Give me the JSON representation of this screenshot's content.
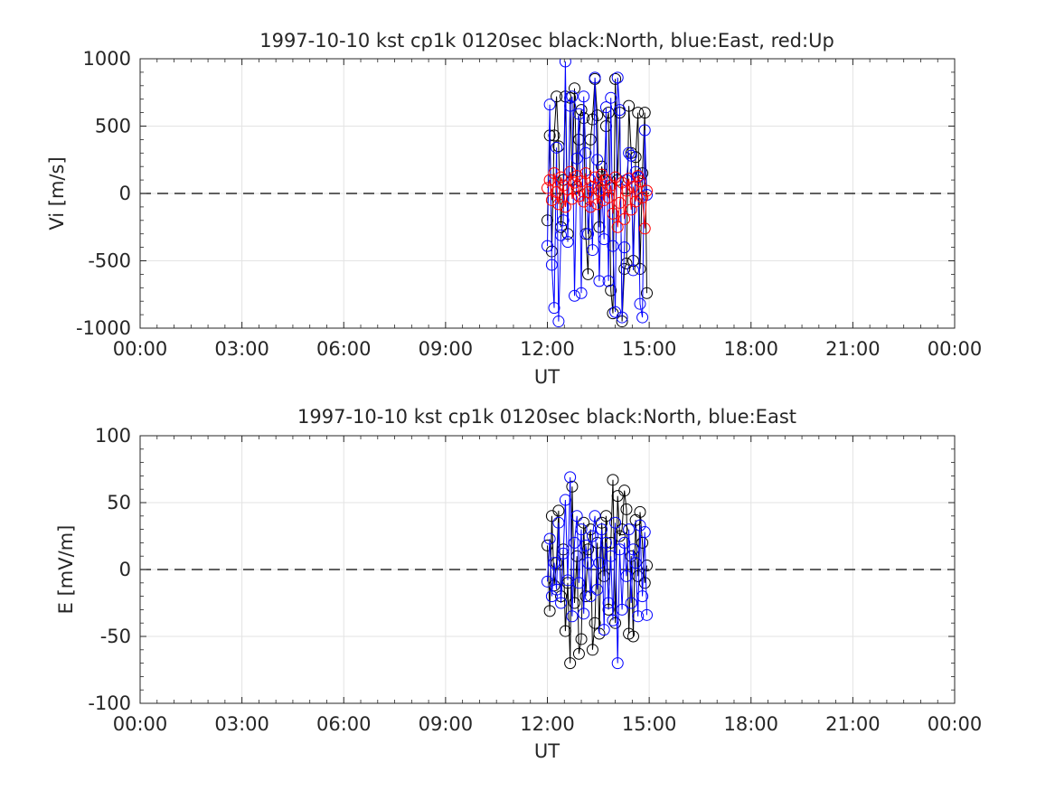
{
  "figure": {
    "background": "#ffffff"
  },
  "chart_data": [
    {
      "type": "scatter",
      "title": "1997-10-10 kst cp1k 0120sec black:North, blue:East, red:Up",
      "xlabel": "UT",
      "ylabel": "Vi [m/s]",
      "xlim": [
        0,
        24
      ],
      "ylim": [
        -1000,
        1000
      ],
      "xticks": [
        0,
        3,
        6,
        9,
        12,
        15,
        18,
        21,
        24
      ],
      "xticklabels": [
        "00:00",
        "03:00",
        "06:00",
        "09:00",
        "12:00",
        "15:00",
        "18:00",
        "21:00",
        "00:00"
      ],
      "yticks": [
        -1000,
        -500,
        0,
        500,
        1000
      ],
      "yticklabels": [
        "-1000",
        "-500",
        "0",
        "500",
        "1000"
      ],
      "grid": true,
      "zero_line": true,
      "x_unit": "hours UT",
      "series": [
        {
          "color": "#000000",
          "x": [
            12.0,
            12.07,
            12.13,
            12.2,
            12.27,
            12.33,
            12.4,
            12.47,
            12.53,
            12.6,
            12.67,
            12.73,
            12.8,
            12.87,
            12.93,
            13.0,
            13.07,
            13.13,
            13.2,
            13.27,
            13.33,
            13.4,
            13.47,
            13.53,
            13.6,
            13.67,
            13.73,
            13.8,
            13.87,
            13.93,
            14.0,
            14.07,
            14.13,
            14.2,
            14.27,
            14.33,
            14.4,
            14.47,
            14.53,
            14.6,
            14.67,
            14.73,
            14.8,
            14.87,
            14.93
          ],
          "y": [
            -200,
            430,
            -430,
            430,
            720,
            350,
            -250,
            100,
            720,
            -300,
            710,
            100,
            780,
            50,
            400,
            620,
            560,
            -300,
            -600,
            400,
            550,
            850,
            580,
            -250,
            200,
            100,
            500,
            600,
            -720,
            -890,
            850,
            100,
            600,
            -950,
            -560,
            -520,
            650,
            300,
            -500,
            270,
            600,
            -560,
            150,
            600,
            -740
          ]
        },
        {
          "color": "#0000ff",
          "x": [
            12.0,
            12.07,
            12.13,
            12.2,
            12.27,
            12.33,
            12.4,
            12.47,
            12.53,
            12.6,
            12.67,
            12.73,
            12.8,
            12.87,
            12.93,
            13.0,
            13.07,
            13.13,
            13.2,
            13.27,
            13.33,
            13.4,
            13.47,
            13.53,
            13.6,
            13.67,
            13.73,
            13.8,
            13.87,
            13.93,
            14.0,
            14.07,
            14.13,
            14.2,
            14.27,
            14.33,
            14.4,
            14.47,
            14.53,
            14.6,
            14.67,
            14.73,
            14.8,
            14.87,
            14.93
          ],
          "y": [
            -390,
            660,
            -530,
            -850,
            340,
            -950,
            -310,
            -200,
            980,
            -360,
            650,
            720,
            -760,
            260,
            590,
            -740,
            720,
            300,
            -300,
            100,
            -420,
            860,
            250,
            -650,
            50,
            -340,
            640,
            -650,
            710,
            -390,
            -880,
            860,
            620,
            -920,
            -400,
            100,
            300,
            280,
            -570,
            160,
            120,
            -820,
            -920,
            470,
            -10
          ]
        },
        {
          "color": "#ff0000",
          "x": [
            12.0,
            12.07,
            12.13,
            12.2,
            12.27,
            12.33,
            12.4,
            12.47,
            12.53,
            12.6,
            12.67,
            12.73,
            12.8,
            12.87,
            12.93,
            13.0,
            13.07,
            13.13,
            13.2,
            13.27,
            13.33,
            13.4,
            13.47,
            13.53,
            13.6,
            13.67,
            13.73,
            13.8,
            13.87,
            13.93,
            14.0,
            14.07,
            14.13,
            14.2,
            14.27,
            14.33,
            14.4,
            14.47,
            14.53,
            14.6,
            14.67,
            14.73,
            14.8,
            14.87,
            14.93
          ],
          "y": [
            40,
            100,
            -50,
            150,
            10,
            -80,
            120,
            60,
            -100,
            30,
            160,
            -40,
            80,
            130,
            -20,
            90,
            -60,
            150,
            10,
            -100,
            50,
            120,
            -80,
            20,
            140,
            -50,
            100,
            -30,
            60,
            -150,
            120,
            -250,
            -70,
            80,
            -190,
            20,
            110,
            -120,
            50,
            -60,
            130,
            90,
            -30,
            -260,
            20
          ]
        }
      ]
    },
    {
      "type": "scatter",
      "title": "1997-10-10 kst cp1k 0120sec black:North, blue:East",
      "xlabel": "UT",
      "ylabel": "E [mV/m]",
      "xlim": [
        0,
        24
      ],
      "ylim": [
        -100,
        100
      ],
      "xticks": [
        0,
        3,
        6,
        9,
        12,
        15,
        18,
        21,
        24
      ],
      "xticklabels": [
        "00:00",
        "03:00",
        "06:00",
        "09:00",
        "12:00",
        "15:00",
        "18:00",
        "21:00",
        "00:00"
      ],
      "yticks": [
        -100,
        -50,
        0,
        50,
        100
      ],
      "yticklabels": [
        "-100",
        "-50",
        "0",
        "50",
        "100"
      ],
      "grid": true,
      "zero_line": true,
      "x_unit": "hours UT",
      "series": [
        {
          "color": "#000000",
          "x": [
            12.0,
            12.07,
            12.13,
            12.2,
            12.27,
            12.33,
            12.4,
            12.47,
            12.53,
            12.6,
            12.67,
            12.73,
            12.8,
            12.87,
            12.93,
            13.0,
            13.07,
            13.13,
            13.2,
            13.27,
            13.33,
            13.4,
            13.47,
            13.53,
            13.6,
            13.67,
            13.73,
            13.8,
            13.87,
            13.93,
            14.0,
            14.07,
            14.13,
            14.2,
            14.27,
            14.33,
            14.4,
            14.47,
            14.53,
            14.6,
            14.67,
            14.73,
            14.8,
            14.87,
            14.93
          ],
          "y": [
            18,
            -31,
            40,
            -12,
            5,
            44,
            -20,
            15,
            -46,
            -10,
            -70,
            62,
            -25,
            10,
            -63,
            -52,
            35,
            -20,
            15,
            30,
            -60,
            -40,
            20,
            -48,
            35,
            -5,
            40,
            -30,
            20,
            67,
            -40,
            55,
            25,
            30,
            59,
            45,
            -48,
            10,
            -50,
            37,
            -5,
            43,
            20,
            -10,
            3
          ]
        },
        {
          "color": "#0000ff",
          "x": [
            12.0,
            12.07,
            12.13,
            12.2,
            12.27,
            12.33,
            12.4,
            12.47,
            12.53,
            12.6,
            12.67,
            12.73,
            12.8,
            12.87,
            12.93,
            13.0,
            13.07,
            13.13,
            13.2,
            13.27,
            13.33,
            13.4,
            13.47,
            13.53,
            13.6,
            13.67,
            13.73,
            13.8,
            13.87,
            13.93,
            14.0,
            14.07,
            14.13,
            14.2,
            14.27,
            14.33,
            14.4,
            14.47,
            14.53,
            14.6,
            14.67,
            14.73,
            14.8,
            14.87,
            14.93
          ],
          "y": [
            -9,
            23,
            -20,
            5,
            -15,
            35,
            -25,
            12,
            52,
            -8,
            69,
            -35,
            20,
            40,
            -10,
            30,
            -33,
            18,
            5,
            -20,
            25,
            40,
            -15,
            5,
            30,
            -45,
            20,
            -25,
            10,
            -38,
            35,
            -70,
            15,
            -30,
            20,
            -5,
            30,
            -25,
            15,
            5,
            -35,
            33,
            -20,
            28,
            -34
          ]
        }
      ]
    }
  ]
}
